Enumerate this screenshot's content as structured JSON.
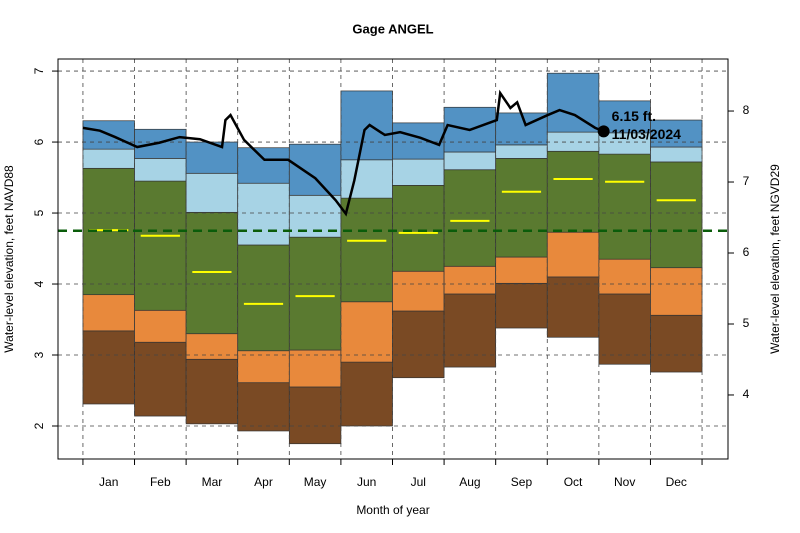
{
  "chart_data": {
    "type": "band",
    "title": "Gage ANGEL",
    "x_label": "Month of year",
    "y_label": "Water-level elevation, feet NAVD88",
    "y2_label": "Water-level elevation, feet NGVD29",
    "categories": [
      "Jan",
      "Feb",
      "Mar",
      "Apr",
      "May",
      "Jun",
      "Jul",
      "Aug",
      "Sep",
      "Oct",
      "Nov",
      "Dec"
    ],
    "xlim": [
      -14.7,
      380.3
    ],
    "ylim": [
      1.535,
      7.17
    ],
    "yticks": [
      2,
      3,
      4,
      5,
      6,
      7
    ],
    "y2lim": [
      3.098,
      8.733
    ],
    "y2ticks": [
      4,
      5,
      6,
      7,
      8
    ],
    "grid": true,
    "base": [
      2.31,
      2.14,
      2.03,
      1.93,
      1.75,
      2.0,
      2.68,
      2.83,
      3.38,
      3.25,
      2.87,
      2.76
    ],
    "series": [
      {
        "color": "#7a4a24",
        "values": [
          3.34,
          3.18,
          2.94,
          2.61,
          2.55,
          2.9,
          3.62,
          3.86,
          4.01,
          4.1,
          3.86,
          3.56
        ]
      },
      {
        "color": "#e8893c",
        "values": [
          3.85,
          3.63,
          3.3,
          3.06,
          3.07,
          3.75,
          4.18,
          4.25,
          4.38,
          4.73,
          4.35,
          4.23
        ]
      },
      {
        "color": "#5a7a30",
        "values": [
          5.63,
          5.45,
          5.01,
          4.55,
          4.66,
          5.21,
          5.39,
          5.61,
          5.77,
          5.87,
          5.83,
          5.72
        ]
      },
      {
        "color": "#a7d3e5",
        "values": [
          5.9,
          5.77,
          5.56,
          5.42,
          5.25,
          5.75,
          5.76,
          5.86,
          5.96,
          6.14,
          6.13,
          5.93
        ]
      },
      {
        "color": "#5292c4",
        "values": [
          6.3,
          6.18,
          6.0,
          5.92,
          5.97,
          6.72,
          6.27,
          6.49,
          6.41,
          6.97,
          6.58,
          6.31
        ]
      }
    ],
    "median": {
      "color": "#ffff00",
      "values": [
        4.76,
        4.68,
        4.17,
        3.72,
        3.83,
        4.61,
        4.72,
        4.89,
        5.3,
        5.48,
        5.44,
        5.18
      ]
    },
    "reference_line": {
      "value": 4.75,
      "color": "#0a5c0a"
    },
    "line": {
      "color": "#000000",
      "x": [
        0,
        10,
        19,
        32,
        45,
        57,
        69,
        82,
        84,
        87,
        95,
        107,
        121,
        137,
        149,
        155,
        160,
        166,
        169,
        178,
        187,
        199,
        210,
        215,
        228,
        244,
        246,
        252,
        256,
        261,
        274,
        281,
        290,
        302,
        307
      ],
      "values": [
        6.2,
        6.16,
        6.07,
        5.93,
        5.99,
        6.07,
        6.04,
        5.93,
        6.31,
        6.38,
        6.03,
        5.75,
        5.75,
        5.49,
        5.18,
        4.99,
        5.46,
        6.17,
        6.24,
        6.1,
        6.14,
        6.06,
        5.96,
        6.24,
        6.17,
        6.31,
        6.69,
        6.48,
        6.56,
        6.24,
        6.38,
        6.45,
        6.38,
        6.2,
        6.15
      ]
    },
    "annotation": {
      "label": "6.15 ft.",
      "date": "11/03/2024"
    }
  }
}
